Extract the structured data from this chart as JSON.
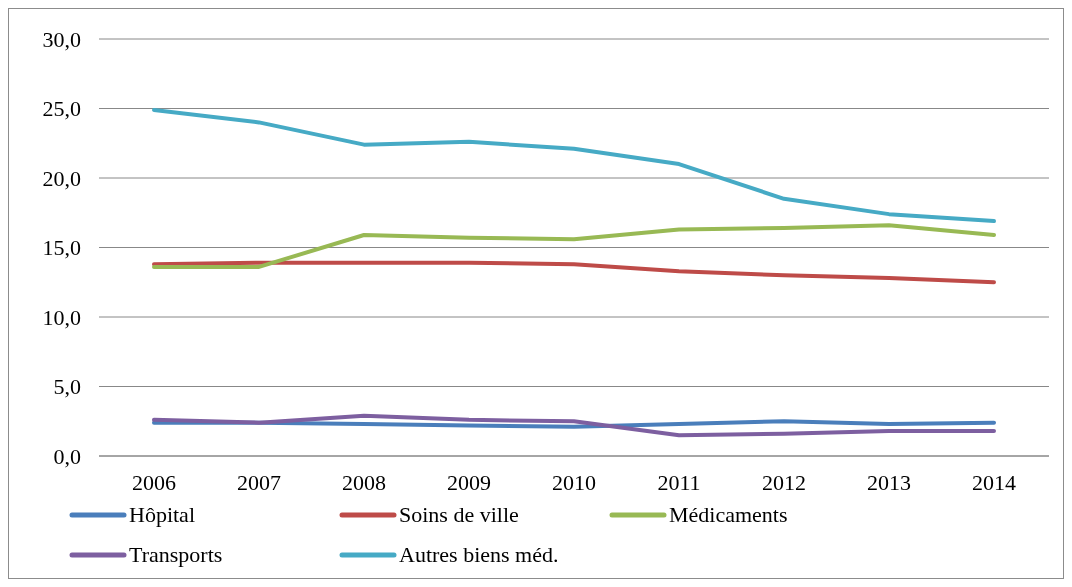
{
  "chart_data": {
    "type": "line",
    "categories": [
      "2006",
      "2007",
      "2008",
      "2009",
      "2010",
      "2011",
      "2012",
      "2013",
      "2014"
    ],
    "series": [
      {
        "name": "Hôpital",
        "color": "#4a7ebb",
        "values": [
          2.4,
          2.4,
          2.3,
          2.2,
          2.1,
          2.3,
          2.5,
          2.3,
          2.4
        ]
      },
      {
        "name": "Soins de ville",
        "color": "#be4b48",
        "values": [
          13.8,
          13.9,
          13.9,
          13.9,
          13.8,
          13.3,
          13.0,
          12.8,
          12.5
        ]
      },
      {
        "name": "Médicaments",
        "color": "#98b954",
        "values": [
          13.6,
          13.6,
          15.9,
          15.7,
          15.6,
          16.3,
          16.4,
          16.6,
          15.9
        ]
      },
      {
        "name": "Transports",
        "color": "#7d5fa0",
        "values": [
          2.6,
          2.4,
          2.9,
          2.6,
          2.5,
          1.5,
          1.6,
          1.8,
          1.8
        ]
      },
      {
        "name": "Autres biens méd.",
        "color": "#46aac5",
        "values": [
          24.9,
          24.0,
          22.4,
          22.6,
          22.1,
          21.0,
          18.5,
          17.4,
          16.9
        ]
      }
    ],
    "ylim": [
      0,
      30
    ],
    "yticks": [
      {
        "value": 0,
        "label": "0,0"
      },
      {
        "value": 5,
        "label": "5,0"
      },
      {
        "value": 10,
        "label": "10,0"
      },
      {
        "value": 15,
        "label": "15,0"
      },
      {
        "value": 20,
        "label": "20,0"
      },
      {
        "value": 25,
        "label": "25,0"
      },
      {
        "value": 30,
        "label": "30,0"
      }
    ],
    "grid": "y",
    "legend": "bottom",
    "marker": "none",
    "line_style": "solid"
  }
}
